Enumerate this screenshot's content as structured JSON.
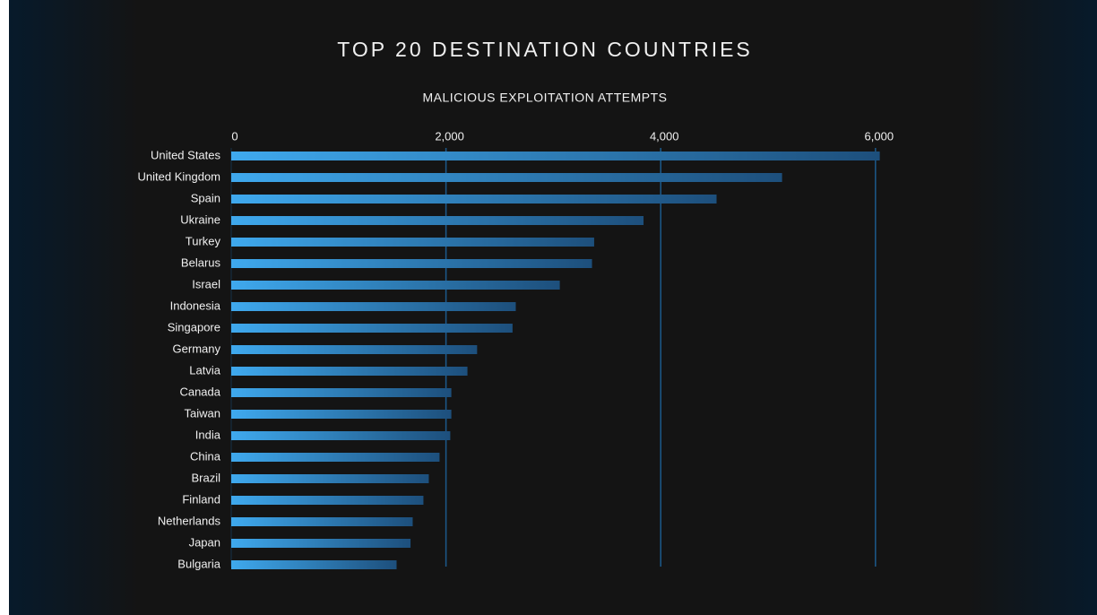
{
  "chart_data": {
    "type": "bar",
    "orientation": "horizontal",
    "title": "TOP 20 DESTINATION COUNTRIES",
    "subtitle": "MALICIOUS EXPLOITATION ATTEMPTS",
    "categories": [
      "United States",
      "United Kingdom",
      "Spain",
      "Ukraine",
      "Turkey",
      "Belarus",
      "Israel",
      "Indonesia",
      "Singapore",
      "Germany",
      "Latvia",
      "Canada",
      "Taiwan",
      "India",
      "China",
      "Brazil",
      "Finland",
      "Netherlands",
      "Japan",
      "Bulgaria"
    ],
    "values": [
      6040,
      5130,
      4520,
      3840,
      3380,
      3360,
      3060,
      2650,
      2620,
      2290,
      2200,
      2050,
      2050,
      2040,
      1940,
      1840,
      1790,
      1690,
      1670,
      1540
    ],
    "gradient": [
      "#3fa9ee",
      "#1d4f7c"
    ],
    "grid_color": "#1c5a8c",
    "xlim": [
      0,
      6100
    ],
    "xticks": [
      0,
      {
        "value": 2000,
        "label": "2,000"
      },
      {
        "value": 4000,
        "label": "4,000"
      },
      {
        "value": 6000,
        "label": "6,000"
      }
    ],
    "grid": true
  }
}
